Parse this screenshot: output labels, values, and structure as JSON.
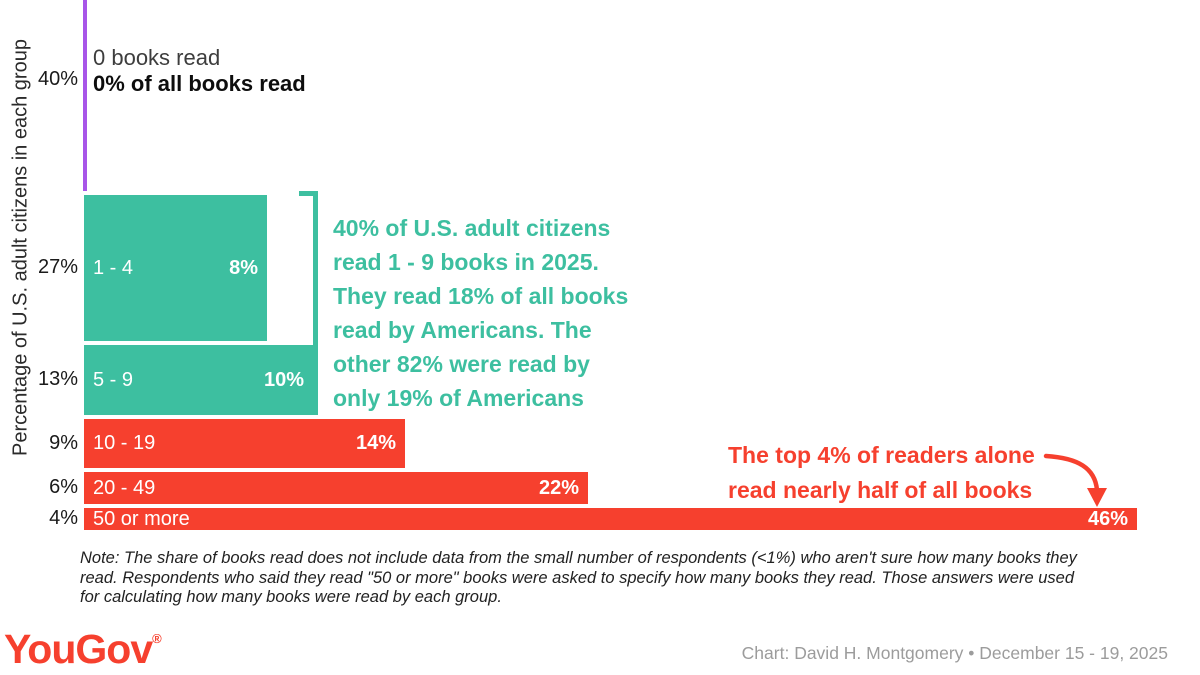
{
  "colors": {
    "teal": "#3dbfa0",
    "red": "#f6402e",
    "purple": "#a855e8",
    "text_dark": "#1a1a1a",
    "credit_gray": "#9c9c9c"
  },
  "y_axis_label": "Percentage of U.S. adult citizens in each group",
  "zero_group": {
    "pct_label": "40%",
    "line1": "0 books read",
    "line2": "0% of all books read"
  },
  "chart_data": {
    "type": "bar",
    "description": "Marimekko-style bar chart: bar height = percentage of U.S. adult citizens in each group, bar width / printed value = percentage of all books read by that group",
    "ylabel": "Percentage of U.S. adult citizens in each group",
    "groups": [
      {
        "books": "0 books read",
        "pct_citizens": 40,
        "pct_citizens_label": "40%",
        "pct_books": 0,
        "pct_books_label": "0% of all books read",
        "color": "purple"
      },
      {
        "books": "1 - 4",
        "pct_citizens": 27,
        "pct_citizens_label": "27%",
        "pct_books": 8,
        "pct_books_label": "8%",
        "color": "teal"
      },
      {
        "books": "5 - 9",
        "pct_citizens": 13,
        "pct_citizens_label": "13%",
        "pct_books": 10,
        "pct_books_label": "10%",
        "color": "teal"
      },
      {
        "books": "10 - 19",
        "pct_citizens": 9,
        "pct_citizens_label": "9%",
        "pct_books": 14,
        "pct_books_label": "14%",
        "color": "red"
      },
      {
        "books": "20 - 49",
        "pct_citizens": 6,
        "pct_citizens_label": "6%",
        "pct_books": 22,
        "pct_books_label": "22%",
        "color": "red"
      },
      {
        "books": "50 or more",
        "pct_citizens": 4,
        "pct_citizens_label": "4%",
        "pct_books": 46,
        "pct_books_label": "46%",
        "color": "red"
      }
    ]
  },
  "annotations": {
    "teal_note": "40% of U.S. adult citizens\nread 1 - 9 books in 2025.\nThey read 18% of all books\nread by Americans. The\nother 82% were read by\nonly 19% of Americans",
    "red_note": "The top 4% of readers alone\nread nearly half of all books"
  },
  "note": "Note: The share of books read does not include data from the small number of respondents (<1%) who aren't sure how many books they\nread. Respondents who said they read \"50 or more\" books were asked to specify how many books they read. Those answers were used\nfor calculating how many books were read by each group.",
  "footer": {
    "logo": "YouGov",
    "logo_mark": "®",
    "credit": "Chart: David H. Montgomery • December 15 - 19, 2025"
  }
}
